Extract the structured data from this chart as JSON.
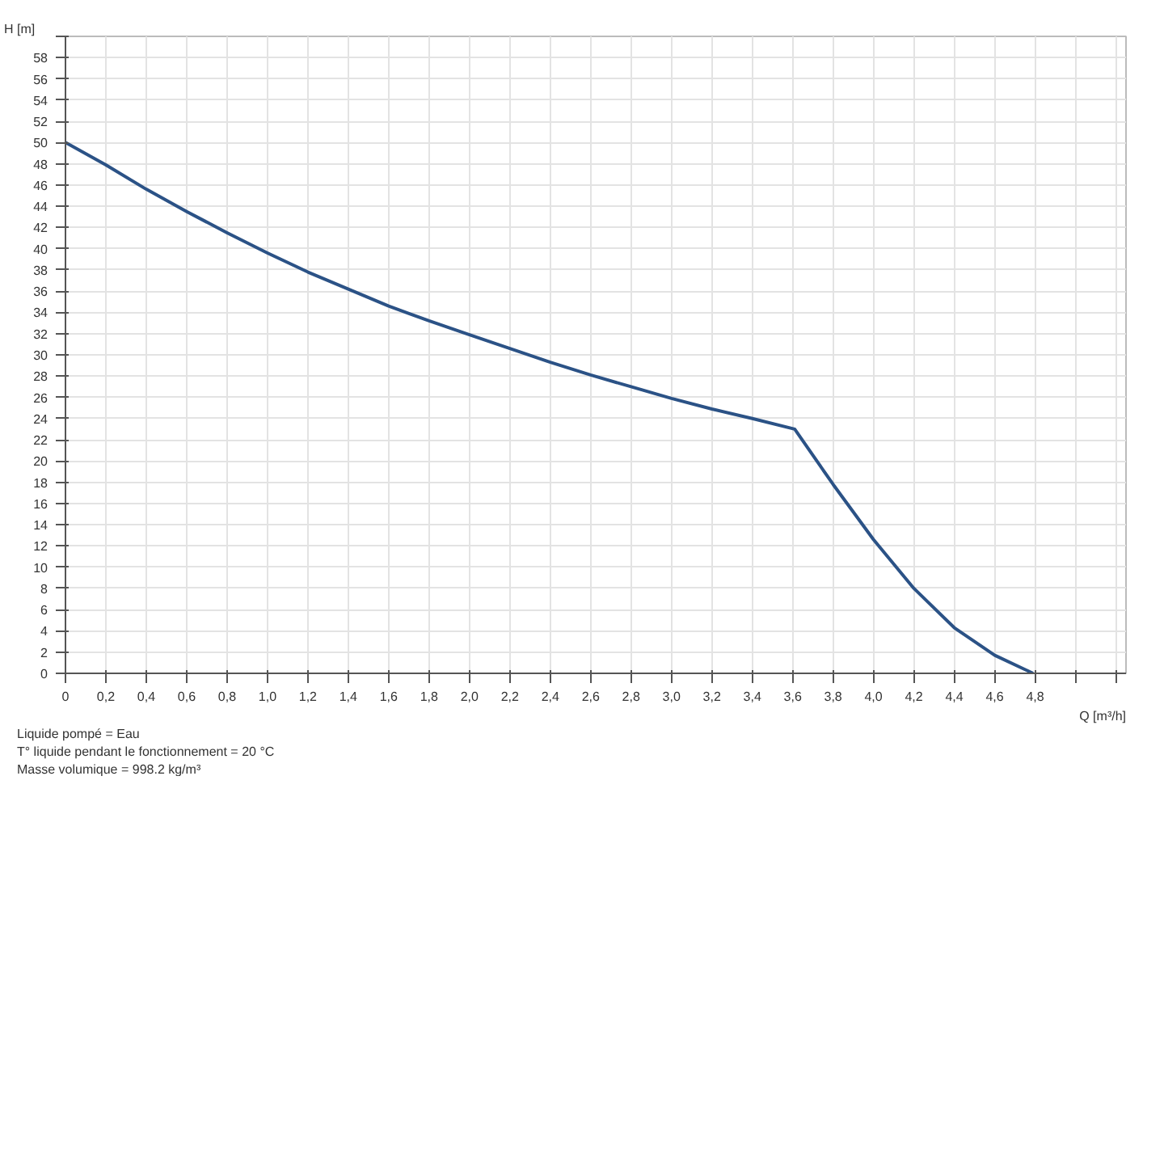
{
  "chart_data": {
    "type": "line",
    "xlabel": "Q [m³/h]",
    "ylabel": "H [m]",
    "x": [
      0,
      0.2,
      0.4,
      0.6,
      0.8,
      1.0,
      1.2,
      1.4,
      1.6,
      1.8,
      2.0,
      2.2,
      2.4,
      2.6,
      2.8,
      3.0,
      3.2,
      3.4,
      3.61,
      3.8,
      4.0,
      4.2,
      4.4,
      4.6,
      4.79
    ],
    "series": [
      {
        "color": "#2b5286",
        "values": [
          50,
          47.9,
          45.6,
          43.5,
          41.5,
          39.6,
          37.8,
          36.2,
          34.6,
          33.2,
          31.9,
          30.6,
          29.3,
          28.1,
          27.0,
          25.9,
          24.9,
          24.0,
          23.0,
          17.8,
          12.6,
          8.0,
          4.3,
          1.7,
          0
        ]
      }
    ],
    "xlim": [
      0,
      5.25
    ],
    "ylim": [
      0,
      60
    ],
    "xticks": [
      {
        "value": 0,
        "label": "0"
      },
      {
        "value": 0.2,
        "label": "0,2"
      },
      {
        "value": 0.4,
        "label": "0,4"
      },
      {
        "value": 0.6,
        "label": "0,6"
      },
      {
        "value": 0.8,
        "label": "0,8"
      },
      {
        "value": 1.0,
        "label": "1,0"
      },
      {
        "value": 1.2,
        "label": "1,2"
      },
      {
        "value": 1.4,
        "label": "1,4"
      },
      {
        "value": 1.6,
        "label": "1,6"
      },
      {
        "value": 1.8,
        "label": "1,8"
      },
      {
        "value": 2.0,
        "label": "2,0"
      },
      {
        "value": 2.2,
        "label": "2,2"
      },
      {
        "value": 2.4,
        "label": "2,4"
      },
      {
        "value": 2.6,
        "label": "2,6"
      },
      {
        "value": 2.8,
        "label": "2,8"
      },
      {
        "value": 3.0,
        "label": "3,0"
      },
      {
        "value": 3.2,
        "label": "3,2"
      },
      {
        "value": 3.4,
        "label": "3,4"
      },
      {
        "value": 3.6,
        "label": "3,6"
      },
      {
        "value": 3.8,
        "label": "3,8"
      },
      {
        "value": 4.0,
        "label": "4,0"
      },
      {
        "value": 4.2,
        "label": "4,2"
      },
      {
        "value": 4.4,
        "label": "4,4"
      },
      {
        "value": 4.6,
        "label": "4,6"
      },
      {
        "value": 4.8,
        "label": "4,8"
      },
      {
        "value": 5.0,
        "label": null
      },
      {
        "value": 5.2,
        "label": null
      }
    ],
    "yticks": [
      0,
      2,
      4,
      6,
      8,
      10,
      12,
      14,
      16,
      18,
      20,
      22,
      24,
      26,
      28,
      30,
      32,
      34,
      36,
      38,
      40,
      42,
      44,
      46,
      48,
      50,
      52,
      54,
      56,
      58,
      {
        "value": 60,
        "label": null
      }
    ],
    "grid": true,
    "marker": "none",
    "line_style": "solid",
    "annotations": [
      "Liquide pompé = Eau",
      "T° liquide pendant le fonctionnement = 20 °C",
      "Masse volumique = 998.2 kg/m³"
    ]
  }
}
